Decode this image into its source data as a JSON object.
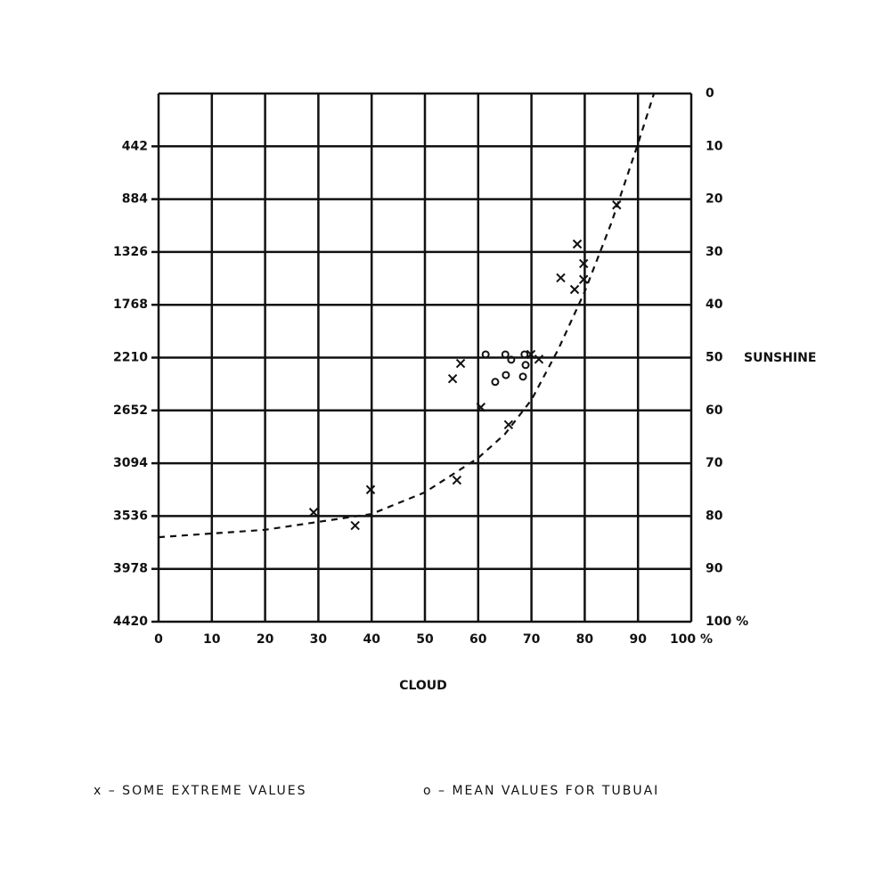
{
  "chart_data": {
    "type": "scatter",
    "x_label": "CLOUD",
    "y_label": "SUNSHINE",
    "xlim": [
      0,
      100
    ],
    "xticks": [
      0,
      10,
      20,
      30,
      40,
      50,
      60,
      70,
      80,
      90,
      {
        "value": 100,
        "label": "100 %"
      }
    ],
    "ylim": [
      0,
      100
    ],
    "y_inverted": true,
    "y_side": "right",
    "yticks": [
      0,
      10,
      20,
      30,
      40,
      50,
      60,
      70,
      80,
      90,
      {
        "value": 100,
        "label": "100 %"
      }
    ],
    "y2lim": [
      0,
      4420
    ],
    "y2_side": "left",
    "y2ticks": [
      442,
      884,
      1326,
      1768,
      2210,
      2652,
      3094,
      3536,
      3978,
      4420
    ],
    "grid": true,
    "legend": "bottom",
    "series": [
      {
        "name": "x – SOME EXTREME VALUES",
        "marker": "x",
        "color": "#111111",
        "x": [
          29.1,
          36.9,
          39.8,
          56.0,
          55.2,
          56.7,
          60.5,
          65.7,
          69.9,
          71.4,
          75.5,
          78.1,
          78.6,
          79.8,
          79.8,
          86.0
        ],
        "values": [
          79.3,
          81.8,
          75.0,
          73.2,
          54.0,
          51.1,
          59.4,
          62.7,
          49.4,
          50.3,
          34.9,
          37.1,
          28.5,
          32.2,
          35.2,
          21.1
        ]
      },
      {
        "name": "o – MEAN VALUES FOR TUBUAI",
        "marker": "o",
        "color": "#111111",
        "x": [
          61.4,
          63.2,
          65.2,
          65.1,
          66.2,
          68.7,
          68.9,
          68.4
        ],
        "values": [
          49.4,
          54.6,
          53.3,
          49.4,
          50.4,
          49.4,
          51.4,
          53.6
        ]
      }
    ],
    "curve": {
      "dashed": true,
      "color": "#111111",
      "x": [
        0,
        20,
        40,
        50,
        60,
        65,
        70,
        75,
        80,
        85,
        90,
        93
      ],
      "values": [
        84,
        82.6,
        79.6,
        75.5,
        69,
        64.5,
        58,
        48.5,
        37.5,
        24.5,
        9.5,
        0
      ]
    }
  }
}
